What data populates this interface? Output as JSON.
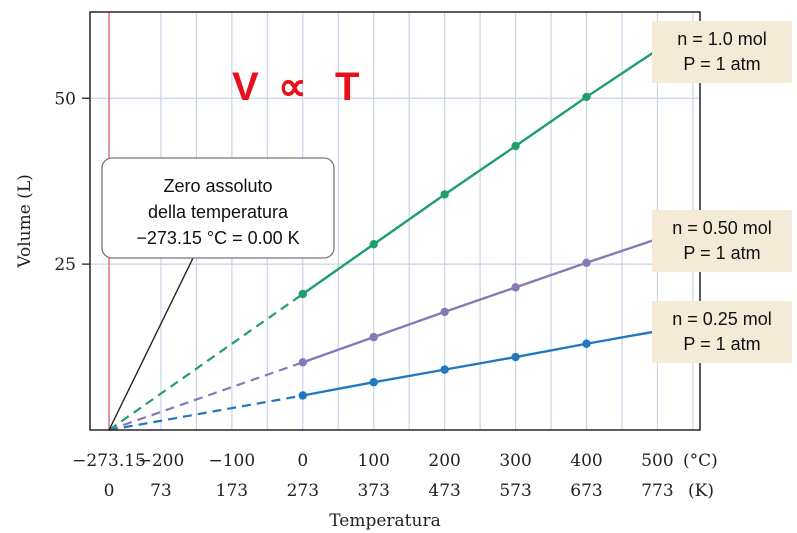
{
  "chart_data": {
    "type": "line",
    "formula": {
      "v": "V",
      "symbol": "∝",
      "t": "T",
      "color": "#e8101a"
    },
    "ylabel": "Volume (L)",
    "xlabel": "Temperatura",
    "xunit_c": "(°C)",
    "xunit_k": "(K)",
    "xlim": [
      -300,
      560
    ],
    "ylim": [
      0,
      63
    ],
    "y_ticks": [
      25,
      50
    ],
    "x_ticks": [
      {
        "c": -273.15,
        "c_label": "−273.15",
        "k_label": "0"
      },
      {
        "c": -200,
        "c_label": "−200",
        "k_label": "73"
      },
      {
        "c": -100,
        "c_label": "−100",
        "k_label": "173"
      },
      {
        "c": 0,
        "c_label": "0",
        "k_label": "273"
      },
      {
        "c": 100,
        "c_label": "100",
        "k_label": "373"
      },
      {
        "c": 200,
        "c_label": "200",
        "k_label": "473"
      },
      {
        "c": 300,
        "c_label": "300",
        "k_label": "573"
      },
      {
        "c": 400,
        "c_label": "400",
        "k_label": "673"
      },
      {
        "c": 500,
        "c_label": "500",
        "k_label": "773"
      }
    ],
    "grid_x": [
      -300,
      -273.15,
      -200,
      -150,
      -100,
      -50,
      0,
      50,
      100,
      150,
      200,
      250,
      300,
      350,
      400,
      450,
      500,
      550
    ],
    "grid_y": [
      25,
      50
    ],
    "zero_line": -273.15,
    "extrapolation_start": -273.15,
    "series": [
      {
        "color": "#1f9e6a",
        "label_n": "n = 1.0 mol",
        "label_p": "P = 1 atm",
        "x": [
          0,
          100,
          200,
          300,
          400,
          500
        ],
        "y": [
          20.5,
          28.0,
          35.5,
          42.8,
          50.2,
          57.3
        ]
      },
      {
        "color": "#8a78b6",
        "label_n": "n = 0.50 mol",
        "label_p": "P = 1 atm",
        "x": [
          0,
          100,
          200,
          300,
          400,
          500
        ],
        "y": [
          10.2,
          14.0,
          17.8,
          21.5,
          25.2,
          28.8
        ]
      },
      {
        "color": "#1f78c0",
        "label_n": "n = 0.25 mol",
        "label_p": "P = 1 atm",
        "x": [
          0,
          100,
          200,
          300,
          400,
          500
        ],
        "y": [
          5.2,
          7.2,
          9.1,
          11.0,
          13.0,
          14.9
        ]
      }
    ],
    "annotation": {
      "lines": [
        "Zero assoluto",
        "della temperatura",
        "−273.15 °C = 0.00 K"
      ],
      "points_to": {
        "x": -273.15,
        "y": 0
      }
    }
  }
}
